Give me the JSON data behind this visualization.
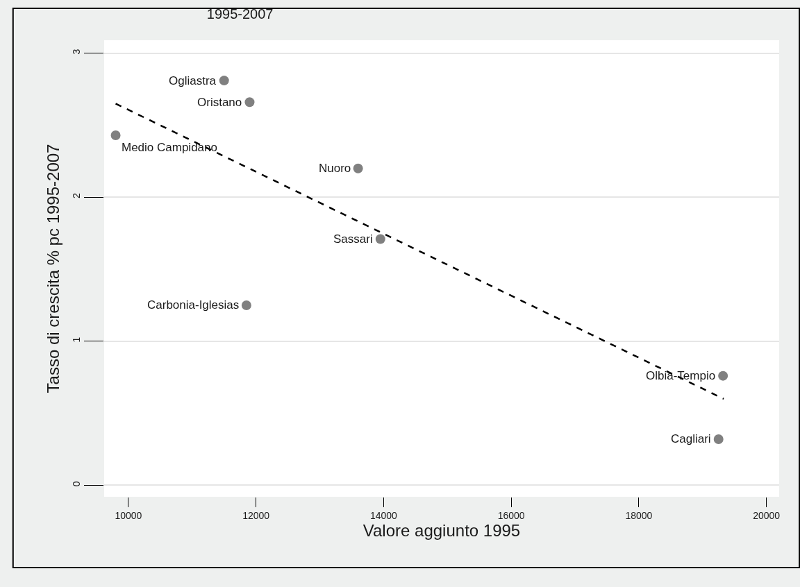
{
  "chart_data": {
    "type": "scatter",
    "title": "1995-2007",
    "xlabel": "Valore aggiunto 1995",
    "ylabel": "Tasso di crescita % pc 1995-2007",
    "xlim": [
      9620,
      20200
    ],
    "ylim": [
      -0.08,
      3.09
    ],
    "xticks": [
      10000,
      12000,
      14000,
      16000,
      18000,
      20000
    ],
    "yticks": [
      0,
      1,
      2,
      3
    ],
    "grid": "y",
    "legend": false,
    "marker": "circle",
    "annotations": [
      {
        "text": "Ogliastra",
        "x": 11500,
        "y": 2.81
      },
      {
        "text": "Oristano",
        "x": 11900,
        "y": 2.66
      },
      {
        "text": "Medio Campidano",
        "x": 9800,
        "y": 2.43
      },
      {
        "text": "Nuoro",
        "x": 13600,
        "y": 2.2
      },
      {
        "text": "Sassari",
        "x": 13950,
        "y": 1.71
      },
      {
        "text": "Carbonia-Iglesias",
        "x": 11850,
        "y": 1.25
      },
      {
        "text": "Olbia-Tempio",
        "x": 19320,
        "y": 0.76
      },
      {
        "text": "Cagliari",
        "x": 19250,
        "y": 0.32
      }
    ],
    "series": [
      {
        "color": "#808080",
        "x": [
          11500,
          11900,
          9800,
          13600,
          13950,
          11850,
          19320,
          19250
        ],
        "values": [
          2.81,
          2.66,
          2.43,
          2.2,
          1.71,
          1.25,
          0.76,
          0.32
        ]
      },
      {
        "type": "line",
        "color": "#000000",
        "line_style": "dashed",
        "marker": "none",
        "x": [
          9800,
          19330
        ],
        "values": [
          2.65,
          0.6
        ]
      }
    ]
  }
}
